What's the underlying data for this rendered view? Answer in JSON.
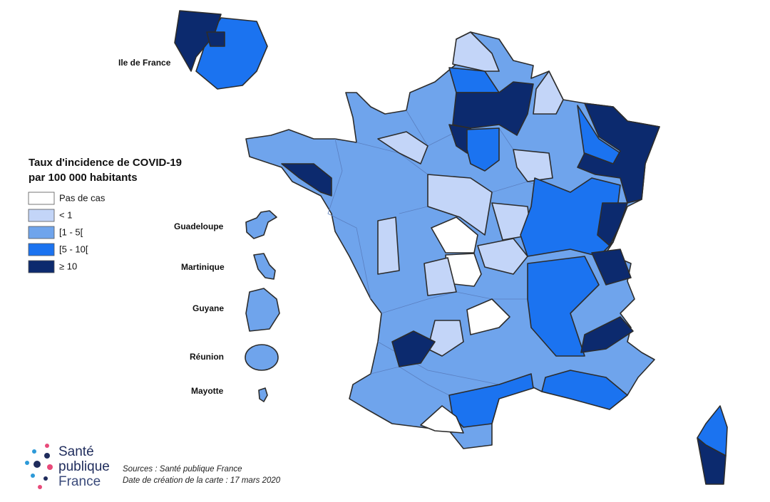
{
  "inset_label": "Ile de France",
  "legend": {
    "title_lines": [
      "Taux d'incidence de COVID-19",
      "par 100 000 habitants"
    ],
    "items": [
      {
        "label": "Pas de cas",
        "color": "#ffffff"
      },
      {
        "label": "< 1",
        "color": "#c3d5f8"
      },
      {
        "label": "[1 - 5[",
        "color": "#6fa4ec"
      },
      {
        "label": "[5 - 10[",
        "color": "#1b73f0"
      },
      {
        "label": "≥ 10",
        "color": "#0c2a6e"
      }
    ]
  },
  "overseas": [
    "Guadeloupe",
    "Martinique",
    "Guyane",
    "Réunion",
    "Mayotte"
  ],
  "logo": {
    "lines": [
      "Santé",
      "publique",
      "France"
    ]
  },
  "sources": [
    "Sources : Santé publique France",
    "Date de création de la carte : 17 mars 2020"
  ]
}
